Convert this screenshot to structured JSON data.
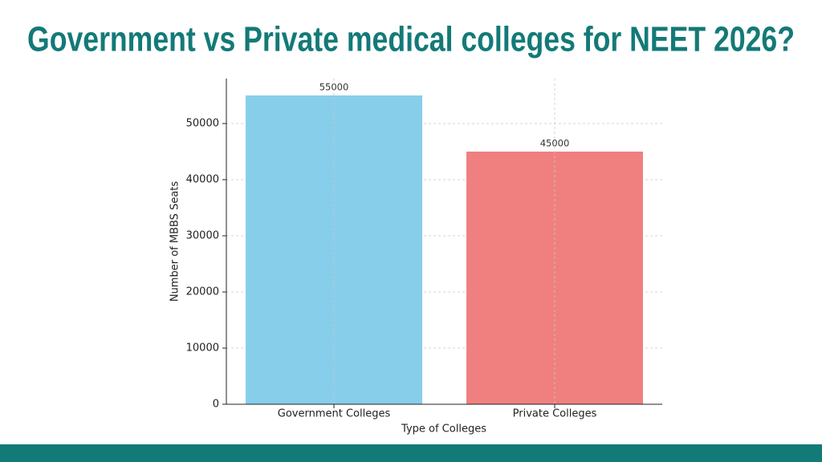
{
  "chart_data": {
    "type": "bar",
    "title": "Government vs Private medical colleges for NEET 2026?",
    "x_label": "Type of Colleges",
    "y_label": "Number of MBBS Seats",
    "categories": [
      "Government Colleges",
      "Private Colleges"
    ],
    "values": [
      55000,
      45000
    ],
    "colors": [
      "#87ceeb",
      "#f08080"
    ],
    "ylim": [
      0,
      58000
    ],
    "yticks": [
      0,
      10000,
      20000,
      30000,
      40000,
      50000
    ],
    "grid": true
  }
}
